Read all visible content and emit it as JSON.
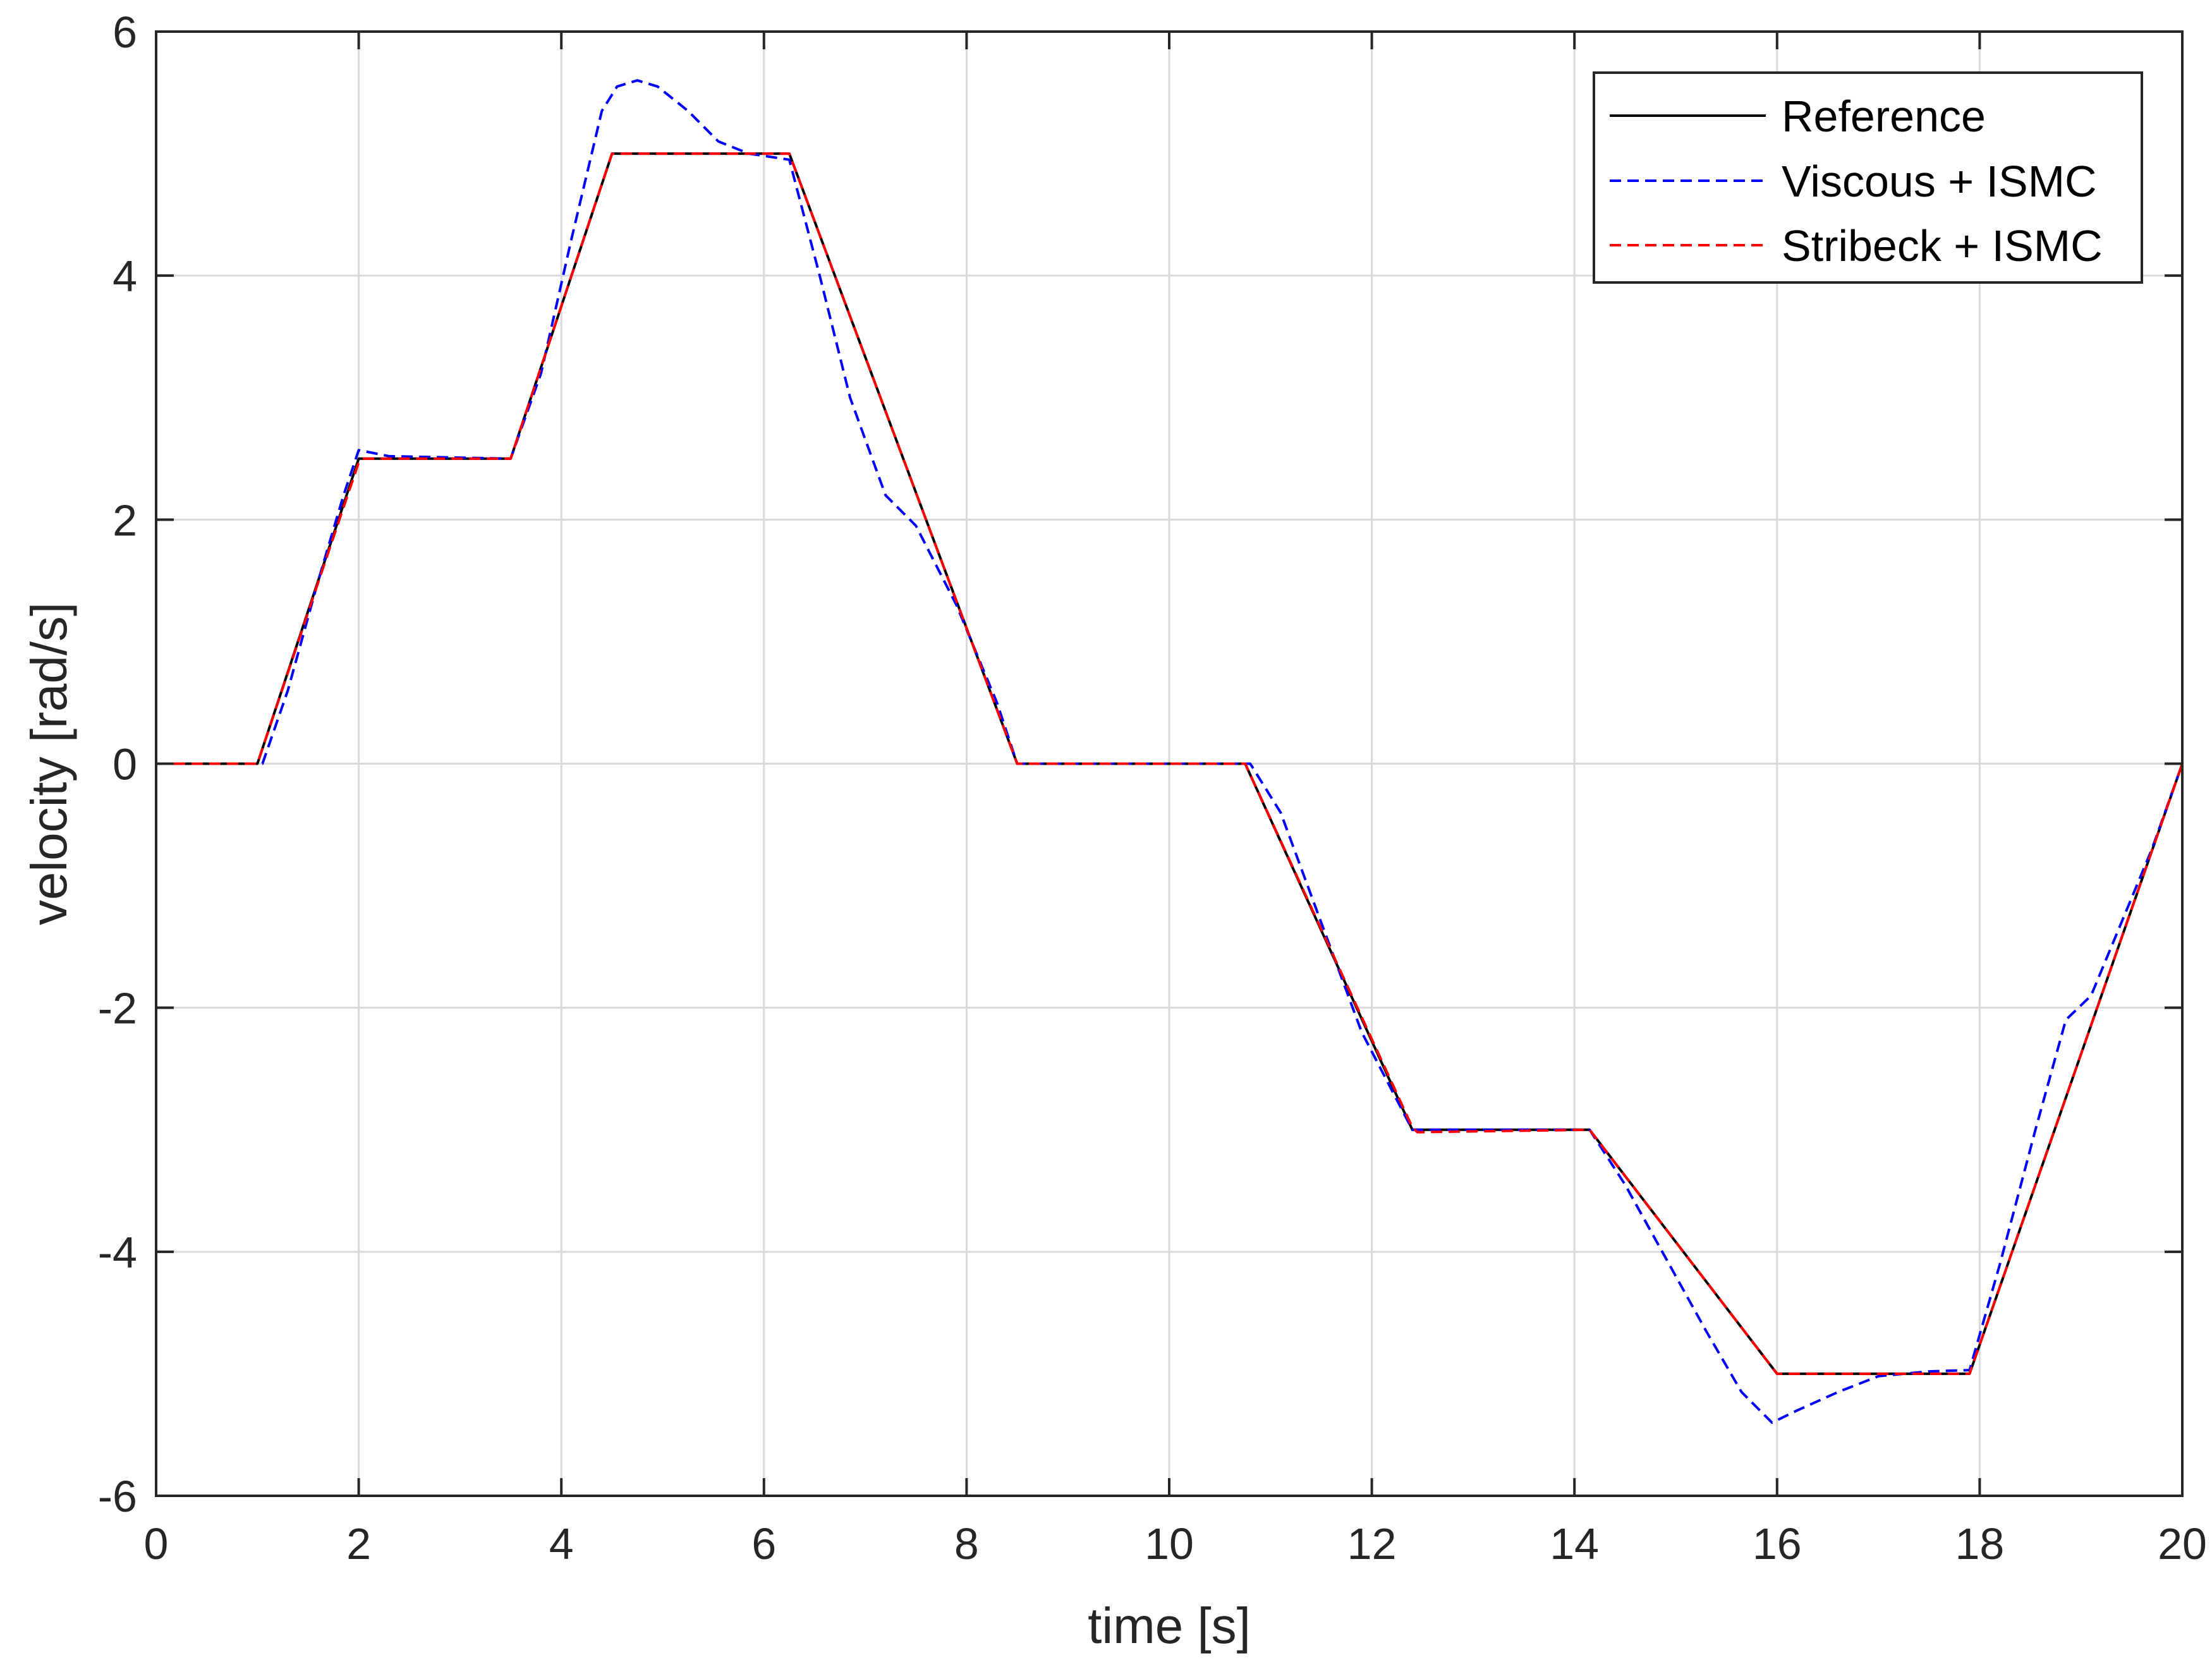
{
  "chart_data": {
    "type": "line",
    "title": "",
    "xlabel": "time [s]",
    "ylabel": "velocity [rad/s]",
    "xlim": [
      0,
      20
    ],
    "ylim": [
      -6,
      6
    ],
    "xticks": [
      0,
      2,
      4,
      6,
      8,
      10,
      12,
      14,
      16,
      18,
      20
    ],
    "yticks": [
      -6,
      -4,
      -2,
      0,
      2,
      4,
      6
    ],
    "xtick_labels": [
      "0",
      "2",
      "4",
      "6",
      "8",
      "10",
      "12",
      "14",
      "16",
      "18",
      "20"
    ],
    "ytick_labels": [
      "-6",
      "-4",
      "-2",
      "0",
      "2",
      "4",
      "6"
    ],
    "grid": true,
    "legend_position": "top-right",
    "series": [
      {
        "name": "Reference",
        "color": "#000000",
        "dash": "solid",
        "x": [
          0,
          1,
          2,
          3.5,
          4.5,
          6.25,
          8.5,
          10.75,
          12.4,
          14.15,
          16,
          17.9,
          20
        ],
        "y": [
          0,
          0,
          2.5,
          2.5,
          5,
          5,
          0,
          0,
          -3,
          -3,
          -5,
          -5,
          0
        ]
      },
      {
        "name": "Viscous + ISMC",
        "color": "#0000ff",
        "dash": "dashed",
        "x": [
          0,
          1.05,
          1.3,
          1.6,
          1.85,
          2.0,
          2.3,
          3.5,
          3.8,
          4.1,
          4.4,
          4.55,
          4.75,
          4.95,
          5.25,
          5.55,
          5.85,
          6.25,
          6.55,
          6.85,
          7.2,
          7.5,
          7.9,
          8.3,
          8.5,
          10.8,
          11.1,
          11.5,
          11.9,
          12.4,
          14.15,
          14.5,
          14.9,
          15.3,
          15.65,
          15.95,
          16.2,
          16.6,
          17.0,
          17.5,
          17.9,
          18.2,
          18.55,
          18.85,
          19.1,
          19.4,
          19.7,
          20
        ],
        "y": [
          0,
          0,
          0.6,
          1.5,
          2.2,
          2.57,
          2.52,
          2.5,
          3.2,
          4.3,
          5.35,
          5.55,
          5.6,
          5.55,
          5.35,
          5.1,
          5.0,
          4.95,
          4.0,
          3.0,
          2.2,
          1.95,
          1.3,
          0.5,
          0,
          0,
          -0.4,
          -1.3,
          -2.2,
          -3.0,
          -3.0,
          -3.45,
          -4.05,
          -4.65,
          -5.15,
          -5.4,
          -5.3,
          -5.15,
          -5.02,
          -4.98,
          -4.97,
          -4.1,
          -3.0,
          -2.1,
          -1.9,
          -1.3,
          -0.7,
          0
        ]
      },
      {
        "name": "Stribeck + ISMC",
        "color": "#ff0000",
        "dash": "dashed",
        "x": [
          0,
          1,
          1.5,
          2,
          2.05,
          3.5,
          4.5,
          6.25,
          8.5,
          10.75,
          12.4,
          12.45,
          14.15,
          16,
          17.9,
          20
        ],
        "y": [
          0,
          0,
          1.24,
          2.47,
          2.5,
          2.5,
          5,
          5,
          0,
          0,
          -2.98,
          -3.02,
          -3.0,
          -5,
          -5,
          0
        ]
      }
    ]
  }
}
